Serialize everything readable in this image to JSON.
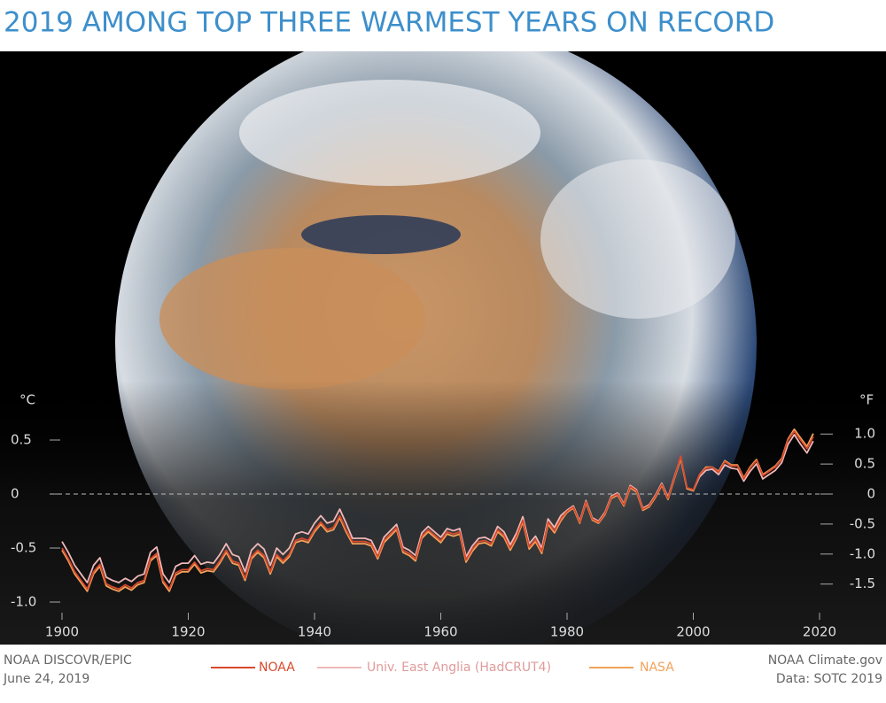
{
  "chart_data": {
    "type": "line",
    "title": "2019 AMONG TOP THREE WARMEST YEARS ON RECORD",
    "y_label": "°C",
    "y2_label": "°F",
    "credit_left": [
      "NOAA DISCOVR/EPIC",
      "June 24, 2019"
    ],
    "credit_right": [
      "NOAA Climate.gov",
      "Data: SOTC 2019"
    ],
    "x": [
      1900,
      1901,
      1902,
      1903,
      1904,
      1905,
      1906,
      1907,
      1908,
      1909,
      1910,
      1911,
      1912,
      1913,
      1914,
      1915,
      1916,
      1917,
      1918,
      1919,
      1920,
      1921,
      1922,
      1923,
      1924,
      1925,
      1926,
      1927,
      1928,
      1929,
      1930,
      1931,
      1932,
      1933,
      1934,
      1935,
      1936,
      1937,
      1938,
      1939,
      1940,
      1941,
      1942,
      1943,
      1944,
      1945,
      1946,
      1947,
      1948,
      1949,
      1950,
      1951,
      1952,
      1953,
      1954,
      1955,
      1956,
      1957,
      1958,
      1959,
      1960,
      1961,
      1962,
      1963,
      1964,
      1965,
      1966,
      1967,
      1968,
      1969,
      1970,
      1971,
      1972,
      1973,
      1974,
      1975,
      1976,
      1977,
      1978,
      1979,
      1980,
      1981,
      1982,
      1983,
      1984,
      1985,
      1986,
      1987,
      1988,
      1989,
      1990,
      1991,
      1992,
      1993,
      1994,
      1995,
      1996,
      1997,
      1998,
      1999,
      2000,
      2001,
      2002,
      2003,
      2004,
      2005,
      2006,
      2007,
      2008,
      2009,
      2010,
      2011,
      2012,
      2013,
      2014,
      2015,
      2016,
      2017,
      2018,
      2019
    ],
    "series": [
      {
        "name": "NOAA",
        "color": "#d84a2c",
        "values": [
          -0.5,
          -0.6,
          -0.72,
          -0.8,
          -0.88,
          -0.72,
          -0.65,
          -0.83,
          -0.86,
          -0.88,
          -0.84,
          -0.87,
          -0.82,
          -0.8,
          -0.6,
          -0.55,
          -0.8,
          -0.88,
          -0.73,
          -0.7,
          -0.7,
          -0.63,
          -0.71,
          -0.69,
          -0.7,
          -0.62,
          -0.52,
          -0.62,
          -0.64,
          -0.78,
          -0.58,
          -0.52,
          -0.57,
          -0.72,
          -0.56,
          -0.62,
          -0.56,
          -0.43,
          -0.41,
          -0.43,
          -0.33,
          -0.26,
          -0.33,
          -0.31,
          -0.2,
          -0.33,
          -0.44,
          -0.44,
          -0.44,
          -0.46,
          -0.58,
          -0.43,
          -0.37,
          -0.31,
          -0.52,
          -0.55,
          -0.6,
          -0.39,
          -0.33,
          -0.38,
          -0.43,
          -0.35,
          -0.37,
          -0.35,
          -0.61,
          -0.51,
          -0.44,
          -0.43,
          -0.46,
          -0.33,
          -0.38,
          -0.5,
          -0.39,
          -0.24,
          -0.49,
          -0.42,
          -0.53,
          -0.26,
          -0.34,
          -0.23,
          -0.16,
          -0.12,
          -0.26,
          -0.07,
          -0.23,
          -0.26,
          -0.18,
          -0.03,
          0.0,
          -0.1,
          0.07,
          0.03,
          -0.14,
          -0.11,
          -0.02,
          0.09,
          -0.04,
          0.15,
          0.35,
          0.06,
          0.04,
          0.18,
          0.24,
          0.25,
          0.2,
          0.3,
          0.26,
          0.26,
          0.14,
          0.24,
          0.31,
          0.17,
          0.21,
          0.25,
          0.32,
          0.5,
          0.58,
          0.5,
          0.42,
          0.53
        ]
      },
      {
        "name": "Univ. East Anglia (HadCRUT4)",
        "color": "#f0b8b8",
        "values": [
          -0.44,
          -0.54,
          -0.66,
          -0.74,
          -0.82,
          -0.66,
          -0.59,
          -0.77,
          -0.8,
          -0.82,
          -0.78,
          -0.81,
          -0.76,
          -0.74,
          -0.54,
          -0.49,
          -0.74,
          -0.82,
          -0.67,
          -0.64,
          -0.64,
          -0.57,
          -0.65,
          -0.63,
          -0.64,
          -0.56,
          -0.46,
          -0.56,
          -0.58,
          -0.72,
          -0.52,
          -0.46,
          -0.51,
          -0.66,
          -0.5,
          -0.56,
          -0.5,
          -0.37,
          -0.35,
          -0.37,
          -0.27,
          -0.2,
          -0.27,
          -0.25,
          -0.14,
          -0.27,
          -0.41,
          -0.41,
          -0.41,
          -0.43,
          -0.55,
          -0.4,
          -0.34,
          -0.28,
          -0.49,
          -0.52,
          -0.57,
          -0.36,
          -0.3,
          -0.35,
          -0.4,
          -0.32,
          -0.34,
          -0.32,
          -0.58,
          -0.48,
          -0.41,
          -0.4,
          -0.43,
          -0.3,
          -0.35,
          -0.47,
          -0.36,
          -0.21,
          -0.46,
          -0.39,
          -0.5,
          -0.23,
          -0.31,
          -0.2,
          -0.15,
          -0.11,
          -0.25,
          -0.06,
          -0.22,
          -0.25,
          -0.17,
          -0.02,
          0.01,
          -0.09,
          0.08,
          0.04,
          -0.13,
          -0.1,
          -0.01,
          0.1,
          -0.03,
          0.16,
          0.34,
          0.05,
          0.03,
          0.16,
          0.22,
          0.23,
          0.18,
          0.27,
          0.24,
          0.23,
          0.12,
          0.21,
          0.28,
          0.14,
          0.18,
          0.22,
          0.29,
          0.46,
          0.55,
          0.46,
          0.38,
          0.49
        ]
      },
      {
        "name": "NASA",
        "color": "#f2a25a",
        "values": [
          -0.52,
          -0.62,
          -0.74,
          -0.82,
          -0.9,
          -0.74,
          -0.67,
          -0.85,
          -0.88,
          -0.9,
          -0.86,
          -0.89,
          -0.84,
          -0.82,
          -0.62,
          -0.57,
          -0.82,
          -0.9,
          -0.75,
          -0.72,
          -0.72,
          -0.65,
          -0.73,
          -0.71,
          -0.72,
          -0.64,
          -0.54,
          -0.64,
          -0.66,
          -0.8,
          -0.6,
          -0.54,
          -0.59,
          -0.74,
          -0.58,
          -0.64,
          -0.58,
          -0.45,
          -0.43,
          -0.45,
          -0.35,
          -0.28,
          -0.35,
          -0.33,
          -0.22,
          -0.35,
          -0.46,
          -0.46,
          -0.46,
          -0.48,
          -0.6,
          -0.45,
          -0.39,
          -0.33,
          -0.54,
          -0.57,
          -0.62,
          -0.41,
          -0.35,
          -0.4,
          -0.45,
          -0.37,
          -0.39,
          -0.37,
          -0.63,
          -0.53,
          -0.46,
          -0.45,
          -0.48,
          -0.35,
          -0.4,
          -0.52,
          -0.41,
          -0.26,
          -0.51,
          -0.44,
          -0.55,
          -0.28,
          -0.36,
          -0.25,
          -0.17,
          -0.13,
          -0.27,
          -0.08,
          -0.24,
          -0.27,
          -0.19,
          -0.04,
          -0.01,
          -0.11,
          0.06,
          0.02,
          -0.15,
          -0.12,
          -0.03,
          0.08,
          -0.05,
          0.14,
          0.33,
          0.05,
          0.03,
          0.18,
          0.25,
          0.25,
          0.21,
          0.31,
          0.27,
          0.27,
          0.15,
          0.25,
          0.32,
          0.18,
          0.22,
          0.26,
          0.33,
          0.51,
          0.6,
          0.52,
          0.44,
          0.56
        ]
      }
    ],
    "xlim": [
      1900,
      2020
    ],
    "xticks": [
      1900,
      1920,
      1940,
      1960,
      1980,
      2000,
      2020
    ],
    "ylim": [
      -1.1,
      0.7
    ],
    "yticks": [
      {
        "value": -1.0,
        "label": "-1.0"
      },
      -0.5,
      0,
      0.5
    ],
    "y2lim": [
      -1.98,
      1.26
    ],
    "y2ticks": [
      -1.5,
      {
        "value": -1.0,
        "label": "-1.0"
      },
      -0.5,
      0,
      0.5,
      {
        "value": 1.0,
        "label": "1.0"
      }
    ],
    "zero_line": true
  }
}
